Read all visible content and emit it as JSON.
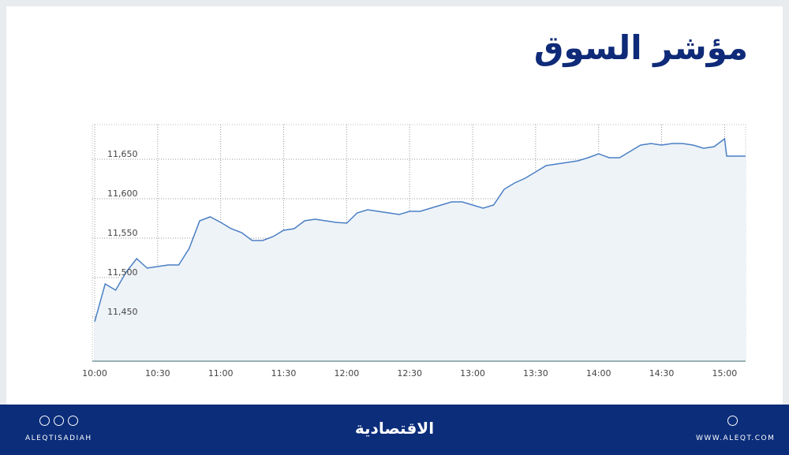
{
  "chart_data": {
    "type": "area",
    "title": "مؤشر السوق",
    "x": [
      "10:00",
      "10:05",
      "10:10",
      "10:15",
      "10:20",
      "10:25",
      "10:30",
      "10:35",
      "10:40",
      "10:45",
      "10:50",
      "10:55",
      "11:00",
      "11:05",
      "11:10",
      "11:15",
      "11:20",
      "11:25",
      "11:30",
      "11:35",
      "11:40",
      "11:45",
      "11:50",
      "11:55",
      "12:00",
      "12:05",
      "12:10",
      "12:15",
      "12:20",
      "12:25",
      "12:30",
      "12:35",
      "12:40",
      "12:45",
      "12:50",
      "12:55",
      "13:00",
      "13:05",
      "13:10",
      "13:15",
      "13:20",
      "13:25",
      "13:30",
      "13:35",
      "13:40",
      "13:45",
      "13:50",
      "13:55",
      "14:00",
      "14:05",
      "14:10",
      "14:15",
      "14:20",
      "14:25",
      "14:30",
      "14:35",
      "14:40",
      "14:45",
      "14:50",
      "14:55",
      "15:00",
      "15:01",
      "15:10"
    ],
    "values": [
      11444,
      11492,
      11484,
      11507,
      11524,
      11512,
      11514,
      11516,
      11516,
      11537,
      11572,
      11577,
      11570,
      11562,
      11557,
      11547,
      11547,
      11552,
      11560,
      11562,
      11572,
      11574,
      11572,
      11570,
      11569,
      11582,
      11586,
      11584,
      11582,
      11580,
      11584,
      11584,
      11588,
      11592,
      11596,
      11596,
      11592,
      11588,
      11592,
      11612,
      11620,
      11626,
      11634,
      11642,
      11644,
      11646,
      11648,
      11652,
      11657,
      11652,
      11652,
      11660,
      11668,
      11670,
      11668,
      11670,
      11670,
      11668,
      11664,
      11666,
      11676,
      11654,
      11654
    ],
    "color": "#4a7fc4",
    "fill": "#eef3f8",
    "xlim": [
      "10:00",
      "15:10"
    ],
    "xticks": [
      "10:00",
      "10:30",
      "11:00",
      "11:30",
      "12:00",
      "12:30",
      "13:00",
      "13:30",
      "14:00",
      "14:30",
      "15:00"
    ],
    "ylim": [
      11394,
      11694
    ],
    "yticks": [
      {
        "value": 11450,
        "label": "11,450"
      },
      {
        "value": 11500,
        "label": "11,500"
      },
      {
        "value": 11550,
        "label": "11,550"
      },
      {
        "value": 11600,
        "label": "11,600"
      },
      {
        "value": 11650,
        "label": "11,650"
      }
    ],
    "grid": true
  },
  "footer": {
    "social": "ALEQTISADIAH",
    "logo": "الاقتصادية",
    "website": "WWW.ALEQT.COM"
  }
}
